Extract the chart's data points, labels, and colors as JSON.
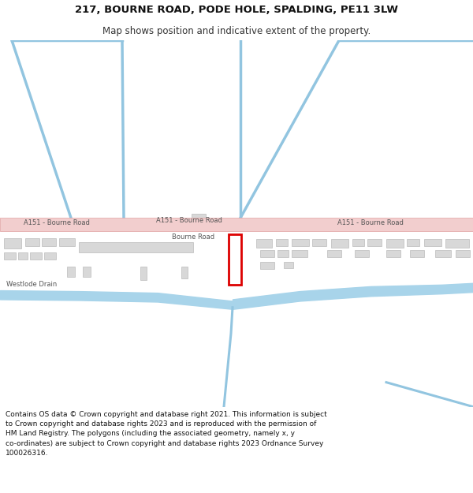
{
  "title_line1": "217, BOURNE ROAD, PODE HOLE, SPALDING, PE11 3LW",
  "title_line2": "Map shows position and indicative extent of the property.",
  "footer_text": "Contains OS data © Crown copyright and database right 2021. This information is subject\nto Crown copyright and database rights 2023 and is reproduced with the permission of\nHM Land Registry. The polygons (including the associated geometry, namely x, y\nco-ordinates) are subject to Crown copyright and database rights 2023 Ordnance Survey\n100026316.",
  "bg_color": "#ffffff",
  "map_bg": "#ffffff",
  "road_pink": "#f2cece",
  "road_pink_border": "#e0a0a0",
  "blue_color": "#92c5e0",
  "drain_fill": "#a8d4ea",
  "building_gray": "#d8d8d8",
  "building_outline": "#bbbbbb",
  "plot_red": "#dd0000",
  "plot_fill": "#ffffff",
  "road_label": "#555555",
  "text_dark": "#111111",
  "title_fontsize": 9.5,
  "subtitle_fontsize": 8.5,
  "footer_fontsize": 6.5,
  "road_fontsize": 6.0
}
